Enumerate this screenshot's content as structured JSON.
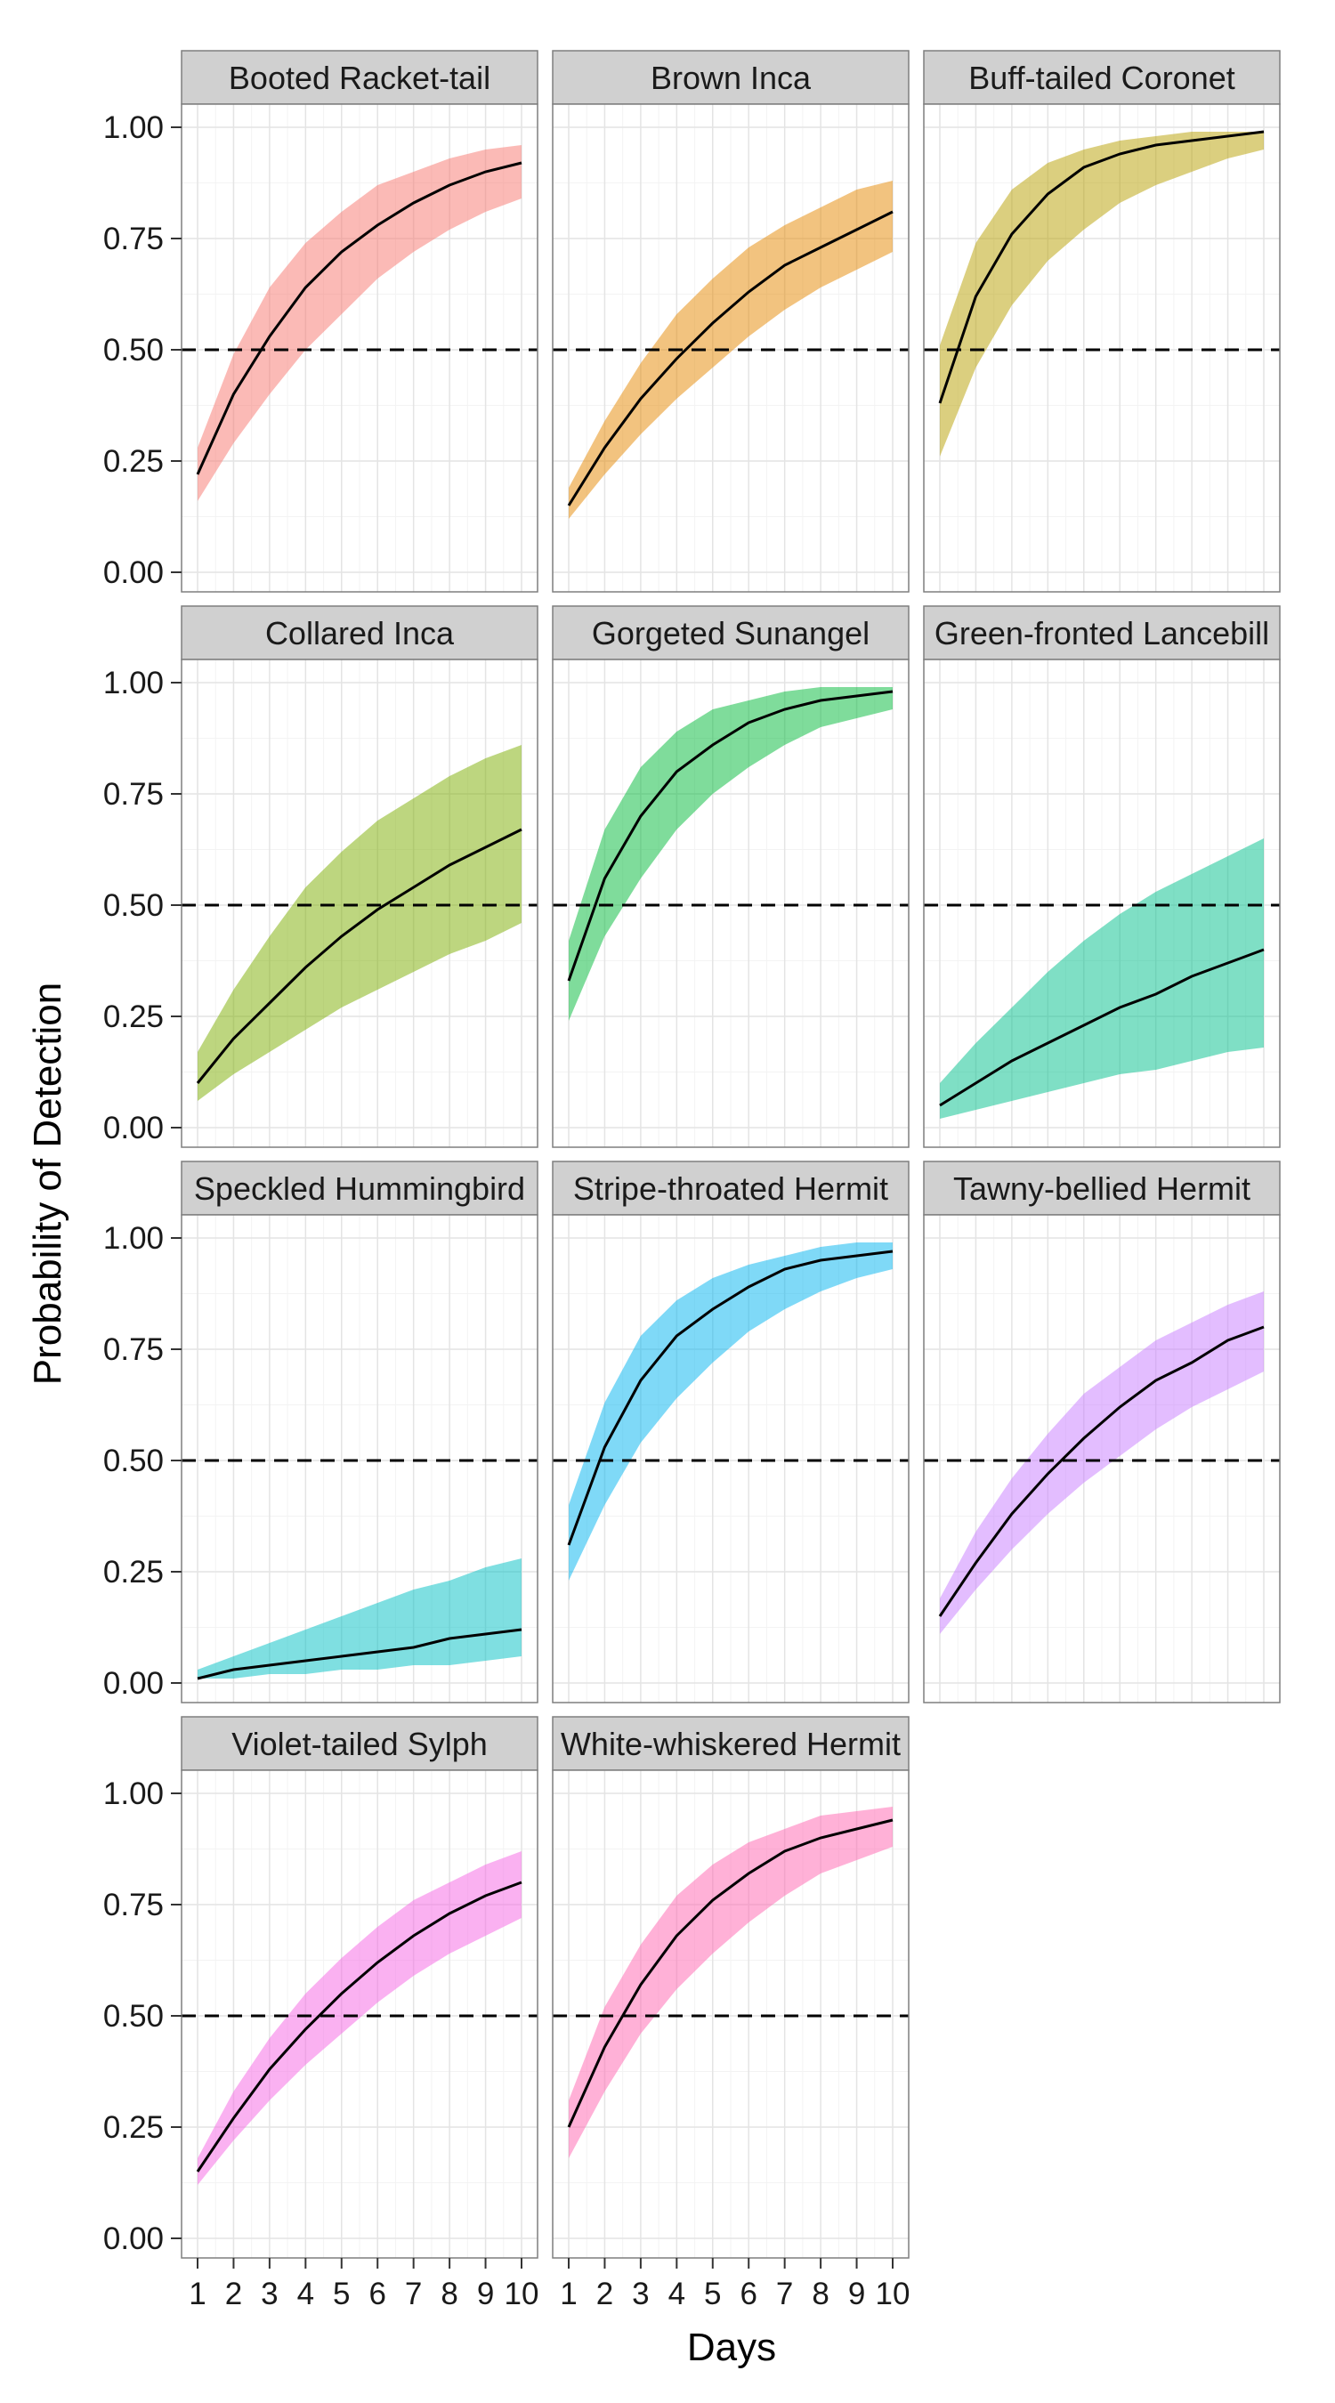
{
  "chart_data": {
    "type": "area",
    "layout": "facet-grid-3-columns",
    "xlabel": "Days",
    "ylabel": "Probability of Detection",
    "x": [
      1,
      2,
      3,
      4,
      5,
      6,
      7,
      8,
      9,
      10
    ],
    "xlim": [
      1,
      10
    ],
    "ylim": [
      0,
      1
    ],
    "xticks": [
      "1",
      "2",
      "3",
      "4",
      "5",
      "6",
      "7",
      "8",
      "9",
      "10"
    ],
    "yticks": [
      "0.00",
      "0.25",
      "0.50",
      "0.75",
      "1.00"
    ],
    "reference_line": {
      "y": 0.5,
      "style": "dashed"
    },
    "grid": true,
    "panel_background": "#ffffff",
    "strip_background": "#d0d0d0",
    "line_color": "#000000",
    "panels": [
      {
        "name": "Booted Racket-tail",
        "color": "#f8766d",
        "mean": [
          0.22,
          0.4,
          0.53,
          0.64,
          0.72,
          0.78,
          0.83,
          0.87,
          0.9,
          0.92
        ],
        "lower": [
          0.16,
          0.29,
          0.4,
          0.5,
          0.58,
          0.66,
          0.72,
          0.77,
          0.81,
          0.84
        ],
        "upper": [
          0.28,
          0.49,
          0.64,
          0.74,
          0.81,
          0.87,
          0.9,
          0.93,
          0.95,
          0.96
        ]
      },
      {
        "name": "Brown Inca",
        "color": "#e58700",
        "mean": [
          0.15,
          0.28,
          0.39,
          0.48,
          0.56,
          0.63,
          0.69,
          0.73,
          0.77,
          0.81
        ],
        "lower": [
          0.12,
          0.22,
          0.31,
          0.39,
          0.46,
          0.53,
          0.59,
          0.64,
          0.68,
          0.72
        ],
        "upper": [
          0.19,
          0.34,
          0.47,
          0.58,
          0.66,
          0.73,
          0.78,
          0.82,
          0.86,
          0.88
        ]
      },
      {
        "name": "Buff-tailed Coronet",
        "color": "#b79f00",
        "mean": [
          0.38,
          0.62,
          0.76,
          0.85,
          0.91,
          0.94,
          0.96,
          0.97,
          0.98,
          0.99
        ],
        "lower": [
          0.26,
          0.46,
          0.6,
          0.7,
          0.77,
          0.83,
          0.87,
          0.9,
          0.93,
          0.95
        ],
        "upper": [
          0.51,
          0.74,
          0.86,
          0.92,
          0.95,
          0.97,
          0.98,
          0.99,
          0.99,
          0.99
        ]
      },
      {
        "name": "Collared Inca",
        "color": "#7cae00",
        "mean": [
          0.1,
          0.2,
          0.28,
          0.36,
          0.43,
          0.49,
          0.54,
          0.59,
          0.63,
          0.67
        ],
        "lower": [
          0.06,
          0.12,
          0.17,
          0.22,
          0.27,
          0.31,
          0.35,
          0.39,
          0.42,
          0.46
        ],
        "upper": [
          0.17,
          0.31,
          0.43,
          0.54,
          0.62,
          0.69,
          0.74,
          0.79,
          0.83,
          0.86
        ]
      },
      {
        "name": "Gorgeted Sunangel",
        "color": "#00ba38",
        "mean": [
          0.33,
          0.56,
          0.7,
          0.8,
          0.86,
          0.91,
          0.94,
          0.96,
          0.97,
          0.98
        ],
        "lower": [
          0.24,
          0.43,
          0.56,
          0.67,
          0.75,
          0.81,
          0.86,
          0.9,
          0.92,
          0.94
        ],
        "upper": [
          0.42,
          0.67,
          0.81,
          0.89,
          0.94,
          0.96,
          0.98,
          0.99,
          0.99,
          0.99
        ]
      },
      {
        "name": "Green-fronted Lancebill",
        "color": "#00c08b",
        "mean": [
          0.05,
          0.1,
          0.15,
          0.19,
          0.23,
          0.27,
          0.3,
          0.34,
          0.37,
          0.4
        ],
        "lower": [
          0.02,
          0.04,
          0.06,
          0.08,
          0.1,
          0.12,
          0.13,
          0.15,
          0.17,
          0.18
        ],
        "upper": [
          0.1,
          0.19,
          0.27,
          0.35,
          0.42,
          0.48,
          0.53,
          0.57,
          0.61,
          0.65
        ]
      },
      {
        "name": "Speckled Hummingbird",
        "color": "#00bfc4",
        "mean": [
          0.01,
          0.03,
          0.04,
          0.05,
          0.06,
          0.07,
          0.08,
          0.1,
          0.11,
          0.12
        ],
        "lower": [
          0.01,
          0.01,
          0.02,
          0.02,
          0.03,
          0.03,
          0.04,
          0.04,
          0.05,
          0.06
        ],
        "upper": [
          0.03,
          0.06,
          0.09,
          0.12,
          0.15,
          0.18,
          0.21,
          0.23,
          0.26,
          0.28
        ]
      },
      {
        "name": "Stripe-throated Hermit",
        "color": "#00b4f0",
        "mean": [
          0.31,
          0.53,
          0.68,
          0.78,
          0.84,
          0.89,
          0.93,
          0.95,
          0.96,
          0.97
        ],
        "lower": [
          0.23,
          0.4,
          0.54,
          0.64,
          0.72,
          0.79,
          0.84,
          0.88,
          0.91,
          0.93
        ],
        "upper": [
          0.4,
          0.63,
          0.78,
          0.86,
          0.91,
          0.94,
          0.96,
          0.98,
          0.99,
          0.99
        ]
      },
      {
        "name": "Tawny-bellied Hermit",
        "color": "#c77cff",
        "mean": [
          0.15,
          0.27,
          0.38,
          0.47,
          0.55,
          0.62,
          0.68,
          0.72,
          0.77,
          0.8
        ],
        "lower": [
          0.11,
          0.21,
          0.3,
          0.38,
          0.45,
          0.51,
          0.57,
          0.62,
          0.66,
          0.7
        ],
        "upper": [
          0.19,
          0.34,
          0.46,
          0.56,
          0.65,
          0.71,
          0.77,
          0.81,
          0.85,
          0.88
        ]
      },
      {
        "name": "Violet-tailed Sylph",
        "color": "#f564e3",
        "mean": [
          0.15,
          0.27,
          0.38,
          0.47,
          0.55,
          0.62,
          0.68,
          0.73,
          0.77,
          0.8
        ],
        "lower": [
          0.12,
          0.22,
          0.31,
          0.39,
          0.46,
          0.53,
          0.59,
          0.64,
          0.68,
          0.72
        ],
        "upper": [
          0.18,
          0.33,
          0.45,
          0.55,
          0.63,
          0.7,
          0.76,
          0.8,
          0.84,
          0.87
        ]
      },
      {
        "name": "White-whiskered Hermit",
        "color": "#ff64b0",
        "mean": [
          0.25,
          0.43,
          0.57,
          0.68,
          0.76,
          0.82,
          0.87,
          0.9,
          0.92,
          0.94
        ],
        "lower": [
          0.18,
          0.33,
          0.46,
          0.56,
          0.64,
          0.71,
          0.77,
          0.82,
          0.85,
          0.88
        ],
        "upper": [
          0.31,
          0.52,
          0.66,
          0.77,
          0.84,
          0.89,
          0.92,
          0.95,
          0.96,
          0.97
        ]
      }
    ]
  }
}
